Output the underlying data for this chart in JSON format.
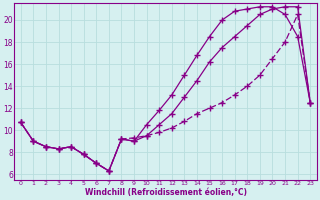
{
  "xlabel": "Windchill (Refroidissement éolien,°C)",
  "bg_color": "#d6f0f0",
  "line_color": "#880088",
  "grid_color": "#b8dede",
  "xlim": [
    -0.5,
    23.5
  ],
  "ylim": [
    5.5,
    21.5
  ],
  "xticks": [
    0,
    1,
    2,
    3,
    4,
    5,
    6,
    7,
    8,
    9,
    10,
    11,
    12,
    13,
    14,
    15,
    16,
    17,
    18,
    19,
    20,
    21,
    22,
    23
  ],
  "yticks": [
    6,
    8,
    10,
    12,
    14,
    16,
    18,
    20
  ],
  "curve1_x": [
    0,
    1,
    2,
    3,
    4,
    5,
    6,
    7,
    8,
    9,
    10,
    11,
    12,
    13,
    14,
    15,
    16,
    17,
    18,
    19,
    20,
    21,
    22,
    23
  ],
  "curve1_y": [
    10.7,
    9.0,
    8.5,
    8.3,
    8.5,
    7.8,
    7.0,
    6.3,
    9.2,
    9.0,
    10.5,
    11.8,
    13.2,
    15.0,
    16.8,
    18.5,
    20.0,
    20.8,
    21.0,
    21.2,
    21.2,
    20.5,
    18.5,
    12.5
  ],
  "curve2_x": [
    0,
    1,
    2,
    3,
    4,
    5,
    6,
    7,
    8,
    9,
    10,
    11,
    12,
    13,
    14,
    15,
    16,
    17,
    18,
    19,
    20,
    21,
    22,
    23
  ],
  "curve2_y": [
    10.7,
    9.0,
    8.5,
    8.3,
    8.5,
    7.8,
    7.0,
    6.3,
    9.2,
    9.0,
    9.5,
    10.5,
    11.5,
    13.0,
    14.5,
    16.2,
    17.5,
    18.5,
    19.5,
    20.5,
    21.0,
    21.2,
    21.2,
    12.5
  ],
  "curve3_x": [
    0,
    1,
    2,
    3,
    4,
    5,
    6,
    7,
    8,
    9,
    10,
    11,
    12,
    13,
    14,
    15,
    16,
    17,
    18,
    19,
    20,
    21,
    22,
    23
  ],
  "curve3_y": [
    10.7,
    9.0,
    8.5,
    8.3,
    8.5,
    7.8,
    7.0,
    6.3,
    9.2,
    9.3,
    9.5,
    9.8,
    10.2,
    10.8,
    11.5,
    12.0,
    12.5,
    13.2,
    14.0,
    15.0,
    16.5,
    18.0,
    20.5,
    12.5
  ],
  "marker": "+",
  "markersize": 4,
  "linewidth": 0.9
}
